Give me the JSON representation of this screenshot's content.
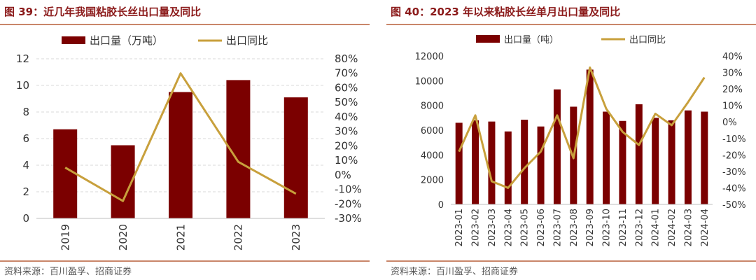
{
  "panels": [
    {
      "title": "图 39：近几年我国粘胶长丝出口量及同比",
      "source": "资料来源：百川盈孚、招商证券"
    },
    {
      "title": "图 40：2023 年以来粘胶长丝单月出口量及同比",
      "source": "资料来源：百川盈孚、招商证券"
    }
  ],
  "colors": {
    "bar": "#7b0000",
    "line": "#c8a03c",
    "title": "#8b1a1a",
    "rule": "#c9866a",
    "grid": "#d9d9d9",
    "axis_text": "#333333"
  },
  "chart_data": [
    {
      "type": "bar",
      "categories": [
        "2019",
        "2020",
        "2021",
        "2022",
        "2023"
      ],
      "series": [
        {
          "name": "出口量（万吨）",
          "type": "bar",
          "axis": "left",
          "values": [
            6.7,
            5.5,
            9.5,
            10.4,
            9.1
          ]
        },
        {
          "name": "出口同比",
          "type": "line",
          "axis": "right",
          "values": [
            0.05,
            -0.18,
            0.7,
            0.09,
            -0.13
          ]
        }
      ],
      "y_left": {
        "min": 0,
        "max": 12,
        "step": 2,
        "ticks": [
          "0",
          "2",
          "4",
          "6",
          "8",
          "10",
          "12"
        ]
      },
      "y_right": {
        "min": -0.3,
        "max": 0.8,
        "step": 0.1,
        "ticks": [
          "-30%",
          "-20%",
          "-10%",
          "0%",
          "10%",
          "20%",
          "30%",
          "40%",
          "50%",
          "60%",
          "70%",
          "80%"
        ]
      },
      "grid": true,
      "legend": "top-center"
    },
    {
      "type": "bar",
      "categories": [
        "2023-01",
        "2023-02",
        "2023-03",
        "2023-04",
        "2023-05",
        "2023-06",
        "2023-07",
        "2023-08",
        "2023-09",
        "2023-10",
        "2023-11",
        "2023-12",
        "2024-01",
        "2024-02",
        "2024-03",
        "2024-04"
      ],
      "series": [
        {
          "name": "出口量（吨）",
          "type": "bar",
          "axis": "left",
          "values": [
            6600,
            6800,
            6700,
            5900,
            6850,
            6300,
            9300,
            7900,
            10900,
            7500,
            6750,
            8100,
            7000,
            6800,
            7600,
            7500
          ]
        },
        {
          "name": "出口同比",
          "type": "line",
          "axis": "right",
          "values": [
            -0.18,
            0.04,
            -0.36,
            -0.4,
            -0.28,
            -0.18,
            0.04,
            -0.22,
            0.33,
            0.08,
            -0.06,
            -0.14,
            0.05,
            -0.02,
            0.12,
            0.27
          ]
        }
      ],
      "y_left": {
        "min": 0,
        "max": 12000,
        "step": 2000,
        "ticks": [
          "0",
          "2000",
          "4000",
          "6000",
          "8000",
          "10000",
          "12000"
        ]
      },
      "y_right": {
        "min": -0.5,
        "max": 0.4,
        "step": 0.1,
        "ticks": [
          "-50%",
          "-40%",
          "-30%",
          "-20%",
          "-10%",
          "0%",
          "10%",
          "20%",
          "30%",
          "40%"
        ]
      },
      "grid": false,
      "legend": "top-center"
    }
  ]
}
